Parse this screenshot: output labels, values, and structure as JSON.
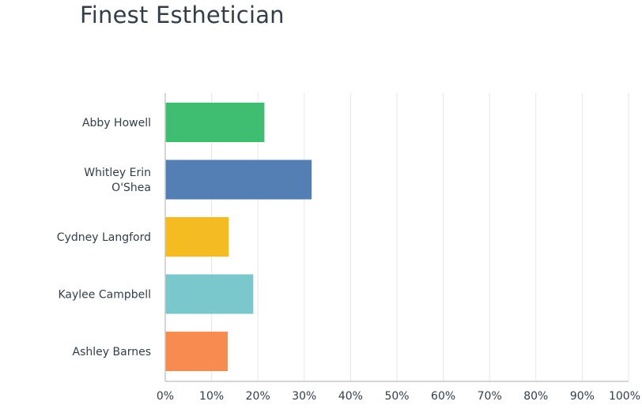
{
  "chart_data": {
    "type": "bar",
    "orientation": "horizontal",
    "title": "Finest Esthetician",
    "categories": [
      [
        "Abby Howell"
      ],
      [
        "Whitley Erin",
        "O'Shea"
      ],
      [
        "Cydney Langford"
      ],
      [
        "Kaylee Campbell"
      ],
      [
        "Ashley Barnes"
      ]
    ],
    "values": [
      21.4,
      31.6,
      13.7,
      19.0,
      13.5
    ],
    "colors": [
      "#3fbe72",
      "#547fb5",
      "#f4bb22",
      "#7ac7cc",
      "#f88c50"
    ],
    "xlim": [
      0,
      100
    ],
    "xticks": [
      "0%",
      "10%",
      "20%",
      "30%",
      "40%",
      "50%",
      "60%",
      "70%",
      "80%",
      "90%",
      "100%"
    ],
    "grid": true
  }
}
